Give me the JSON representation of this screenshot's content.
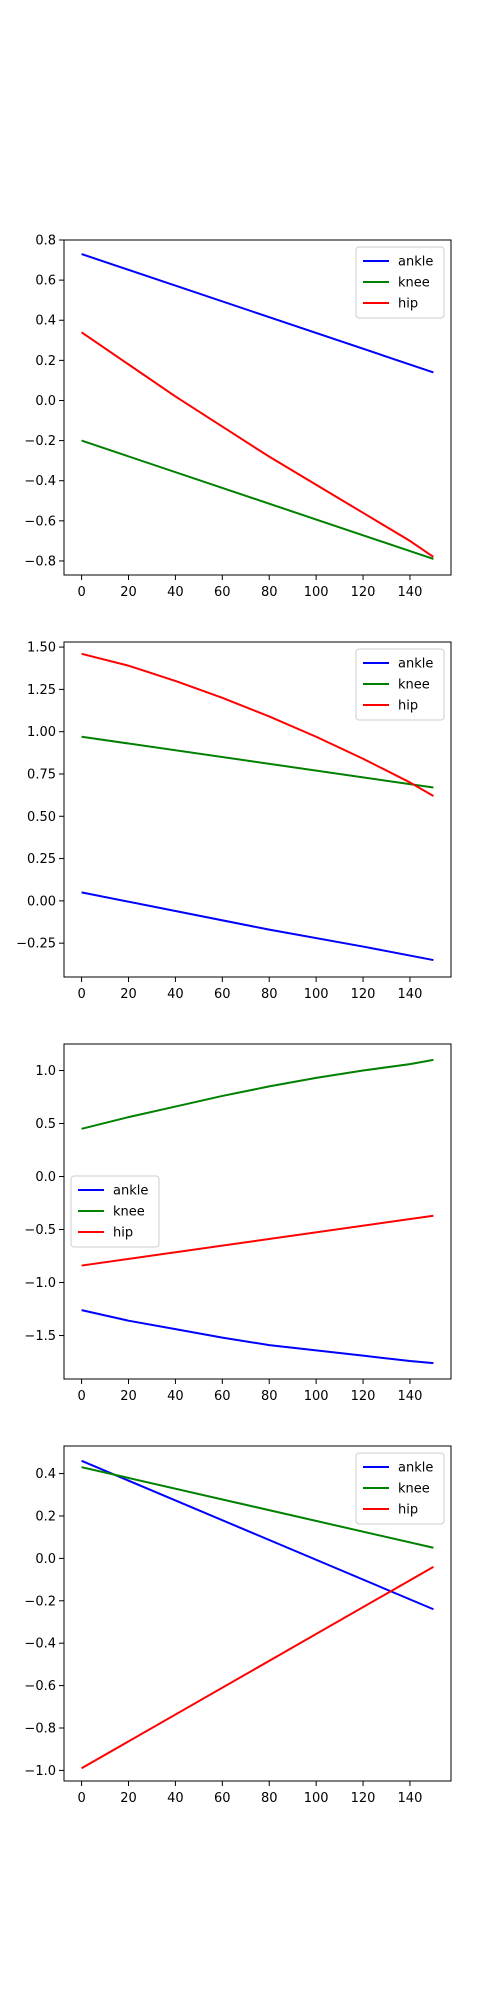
{
  "chart_data": [
    {
      "type": "line",
      "x": [
        0,
        150
      ],
      "xlim": [
        -7.5,
        157.5
      ],
      "ylim": [
        -0.87,
        0.8
      ],
      "xticks": [
        0,
        20,
        40,
        60,
        80,
        100,
        120,
        140
      ],
      "yticks": [
        -0.8,
        -0.6,
        -0.4,
        -0.2,
        0.0,
        0.2,
        0.4,
        0.6,
        0.8
      ],
      "ytick_labels": [
        "−0.8",
        "−0.6",
        "−0.4",
        "−0.2",
        "0.0",
        "0.2",
        "0.4",
        "0.6",
        "0.8"
      ],
      "legend_loc": "upper right",
      "series": [
        {
          "name": "ankle",
          "color": "#0000ff",
          "x": [
            0,
            150
          ],
          "y": [
            0.73,
            0.14
          ]
        },
        {
          "name": "knee",
          "color": "#008000",
          "x": [
            0,
            150
          ],
          "y": [
            -0.2,
            -0.79
          ]
        },
        {
          "name": "hip",
          "color": "#ff0000",
          "x": [
            0,
            20,
            40,
            60,
            80,
            100,
            120,
            140,
            150
          ],
          "y": [
            0.34,
            0.18,
            0.02,
            -0.13,
            -0.28,
            -0.42,
            -0.56,
            -0.7,
            -0.78
          ]
        }
      ]
    },
    {
      "type": "line",
      "x": [
        0,
        150
      ],
      "xlim": [
        -7.5,
        157.5
      ],
      "ylim": [
        -0.45,
        1.53
      ],
      "xticks": [
        0,
        20,
        40,
        60,
        80,
        100,
        120,
        140
      ],
      "yticks": [
        -0.25,
        0.0,
        0.25,
        0.5,
        0.75,
        1.0,
        1.25,
        1.5
      ],
      "ytick_labels": [
        "−0.25",
        "0.00",
        "0.25",
        "0.50",
        "0.75",
        "1.00",
        "1.25",
        "1.50"
      ],
      "legend_loc": "upper right",
      "series": [
        {
          "name": "ankle",
          "color": "#0000ff",
          "x": [
            0,
            40,
            80,
            120,
            150
          ],
          "y": [
            0.05,
            -0.06,
            -0.17,
            -0.27,
            -0.35
          ]
        },
        {
          "name": "knee",
          "color": "#008000",
          "x": [
            0,
            150
          ],
          "y": [
            0.97,
            0.67
          ]
        },
        {
          "name": "hip",
          "color": "#ff0000",
          "x": [
            0,
            20,
            40,
            60,
            80,
            100,
            120,
            140,
            150
          ],
          "y": [
            1.46,
            1.39,
            1.3,
            1.2,
            1.09,
            0.97,
            0.84,
            0.7,
            0.62
          ]
        }
      ]
    },
    {
      "type": "line",
      "x": [
        0,
        150
      ],
      "xlim": [
        -7.5,
        157.5
      ],
      "ylim": [
        -1.91,
        1.25
      ],
      "xticks": [
        0,
        20,
        40,
        60,
        80,
        100,
        120,
        140
      ],
      "yticks": [
        -1.5,
        -1.0,
        -0.5,
        0.0,
        0.5,
        1.0
      ],
      "ytick_labels": [
        "−1.5",
        "−1.0",
        "−0.5",
        "0.0",
        "0.5",
        "1.0"
      ],
      "legend_loc": "center left",
      "series": [
        {
          "name": "ankle",
          "color": "#0000ff",
          "x": [
            0,
            20,
            40,
            60,
            80,
            100,
            120,
            140,
            150
          ],
          "y": [
            -1.26,
            -1.36,
            -1.44,
            -1.52,
            -1.59,
            -1.64,
            -1.69,
            -1.74,
            -1.76
          ]
        },
        {
          "name": "knee",
          "color": "#008000",
          "x": [
            0,
            20,
            40,
            60,
            80,
            100,
            120,
            140,
            150
          ],
          "y": [
            0.45,
            0.56,
            0.66,
            0.76,
            0.85,
            0.93,
            1.0,
            1.06,
            1.1
          ]
        },
        {
          "name": "hip",
          "color": "#ff0000",
          "x": [
            0,
            150
          ],
          "y": [
            -0.84,
            -0.37
          ]
        }
      ]
    },
    {
      "type": "line",
      "x": [
        0,
        150
      ],
      "xlim": [
        -7.5,
        157.5
      ],
      "ylim": [
        -1.05,
        0.53
      ],
      "xticks": [
        0,
        20,
        40,
        60,
        80,
        100,
        120,
        140
      ],
      "yticks": [
        -1.0,
        -0.8,
        -0.6,
        -0.4,
        -0.2,
        0.0,
        0.2,
        0.4
      ],
      "ytick_labels": [
        "−1.0",
        "−0.8",
        "−0.6",
        "−0.4",
        "−0.2",
        "0.0",
        "0.2",
        "0.4"
      ],
      "legend_loc": "upper right",
      "series": [
        {
          "name": "ankle",
          "color": "#0000ff",
          "x": [
            0,
            150
          ],
          "y": [
            0.46,
            -0.24
          ]
        },
        {
          "name": "knee",
          "color": "#008000",
          "x": [
            0,
            150
          ],
          "y": [
            0.43,
            0.05
          ]
        },
        {
          "name": "hip",
          "color": "#ff0000",
          "x": [
            0,
            150
          ],
          "y": [
            -0.99,
            -0.04
          ]
        }
      ]
    }
  ]
}
